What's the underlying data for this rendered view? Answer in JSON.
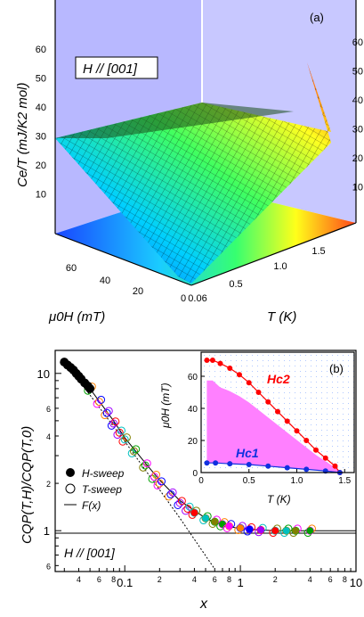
{
  "panel_a": {
    "label": "(a)",
    "field_label": "H // [001]",
    "z_axis_label": "Ce/T (mJ/K2 mol)",
    "z_ticks": [
      "10",
      "20",
      "30",
      "40",
      "50",
      "60"
    ],
    "h_axis_label": "μ0H (mT)",
    "h_ticks": [
      "20",
      "40",
      "60"
    ],
    "t_axis_label": "T (K)",
    "t_ticks": [
      "0.06",
      "0.5",
      "1.0",
      "1.5"
    ],
    "origin_label": "0"
  },
  "panel_b": {
    "label": "(b)",
    "ylabel": "CQP(T,H)/CQP(T,0)",
    "xlabel": "x",
    "field_label": "H // [001]",
    "legend": [
      {
        "label": "H-sweep",
        "marker": "filled-circle"
      },
      {
        "label": "T-sweep",
        "marker": "open-circle"
      },
      {
        "label": "F(x)",
        "marker": "line"
      }
    ],
    "x_tick_labels": [
      "0.1",
      "1",
      "10"
    ],
    "x_minor_labels": [
      "4",
      "6",
      "8",
      "2",
      "4",
      "6",
      "8",
      "2",
      "4",
      "6",
      "8",
      "2",
      "4",
      "6",
      "8"
    ],
    "y_tick_labels": [
      "1",
      "10"
    ],
    "y_minor_labels": [
      "6",
      "2",
      "4",
      "6",
      "2",
      "4",
      "6"
    ],
    "inset": {
      "ylabel": "μ0H (mT)",
      "xlabel": "T (K)",
      "y_ticks": [
        "0",
        "20",
        "40",
        "60"
      ],
      "x_ticks": [
        "0",
        "0.5",
        "1.0",
        "1.5"
      ],
      "hc2_label": "Hc2",
      "hc1_label": "Hc1"
    }
  },
  "chart_data": [
    {
      "type": "surface",
      "title": "",
      "zlabel": "Ce/T (mJ/K2 mol)",
      "xlabel": "μ0H (mT)",
      "ylabel": "T (K)",
      "zlim": [
        0,
        65
      ],
      "xlim": [
        0,
        70
      ],
      "ylim": [
        0.06,
        1.6
      ],
      "normal_state_level": 39,
      "peak_value": 62,
      "peak_at": {
        "T": 0.06,
        "H": 70
      },
      "minimum_value": 2,
      "minimum_at": {
        "T": 0.06,
        "H": 0
      }
    },
    {
      "type": "scatter",
      "xlabel": "x",
      "ylabel": "CQP(T,H)/CQP(T,0)",
      "xscale": "log",
      "yscale": "log",
      "xlim": [
        0.025,
        10
      ],
      "ylim": [
        0.55,
        14
      ],
      "series": [
        {
          "name": "H-sweep",
          "x": [
            0.03,
            0.032,
            0.034,
            0.036,
            0.038,
            0.04,
            0.042,
            0.045,
            0.048,
            0.05
          ],
          "y": [
            11.8,
            11.3,
            10.9,
            10.5,
            10.0,
            9.6,
            9.2,
            8.7,
            8.3,
            8.0
          ]
        },
        {
          "name": "T-sweep",
          "x": [
            0.05,
            0.06,
            0.07,
            0.08,
            0.09,
            0.1,
            0.12,
            0.15,
            0.18,
            0.2,
            0.25,
            0.3,
            0.35,
            0.4,
            0.5,
            0.6,
            0.7,
            0.8,
            1.0,
            1.2,
            1.5,
            2.0,
            2.5,
            3.0,
            4.0
          ],
          "y": [
            8.0,
            6.6,
            5.6,
            4.8,
            4.2,
            3.8,
            3.2,
            2.6,
            2.2,
            2.0,
            1.7,
            1.5,
            1.38,
            1.3,
            1.2,
            1.14,
            1.1,
            1.07,
            1.04,
            1.02,
            1.01,
            1.0,
            1.0,
            1.0,
            1.0
          ]
        },
        {
          "name": "F(x)",
          "x": [
            0.03,
            0.05,
            0.08,
            0.1,
            0.15,
            0.2,
            0.3,
            0.5,
            0.7,
            1.0,
            1.5,
            2,
            3,
            5,
            10
          ],
          "y": [
            12,
            8.0,
            5.0,
            3.9,
            2.7,
            2.1,
            1.55,
            1.2,
            1.08,
            1.03,
            1.01,
            1.0,
            1.0,
            1.0,
            1.0
          ]
        },
        {
          "name": "power-law",
          "x": [
            0.03,
            0.1,
            0.3,
            0.6
          ],
          "y": [
            12,
            3.7,
            1.2,
            0.57
          ]
        }
      ]
    },
    {
      "type": "line",
      "xlabel": "T (K)",
      "ylabel": "μ0H (mT)",
      "xlim": [
        0,
        1.6
      ],
      "ylim": [
        0,
        75
      ],
      "series": [
        {
          "name": "Hc2",
          "x": [
            0.06,
            0.12,
            0.2,
            0.3,
            0.4,
            0.5,
            0.6,
            0.7,
            0.8,
            0.9,
            1.0,
            1.1,
            1.2,
            1.3,
            1.4,
            1.45
          ],
          "y": [
            70,
            70,
            68,
            65,
            61,
            56,
            50,
            44,
            38,
            32,
            26,
            20,
            14,
            9,
            4,
            0
          ]
        },
        {
          "name": "Hc1",
          "x": [
            0.06,
            0.15,
            0.3,
            0.5,
            0.7,
            0.9,
            1.1,
            1.3,
            1.45
          ],
          "y": [
            6,
            6,
            5.5,
            5,
            4,
            3,
            2,
            1,
            0
          ]
        }
      ]
    }
  ]
}
